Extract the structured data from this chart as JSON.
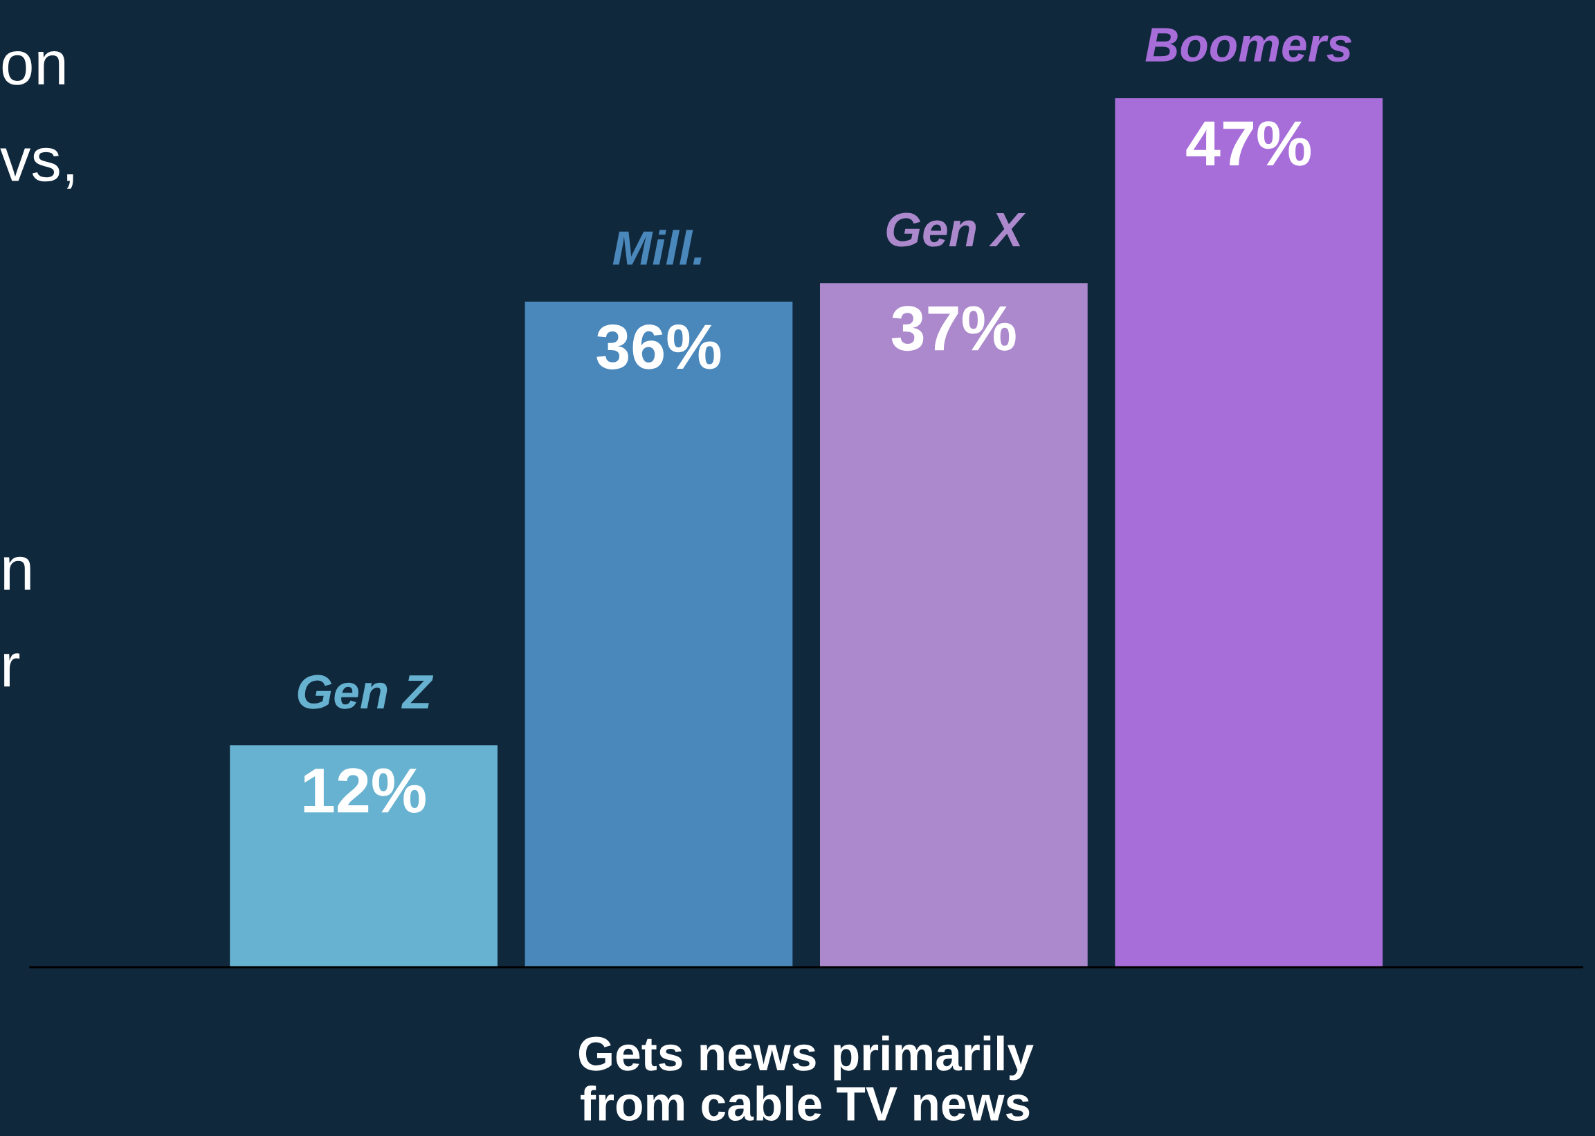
{
  "chart_data": {
    "type": "bar",
    "xlabel": "Gets news primarily\nfrom cable TV news",
    "categories": [
      "Gen Z",
      "Mill.",
      "Gen X",
      "Boomers"
    ],
    "values": [
      12,
      36,
      37,
      47
    ],
    "value_labels": [
      "12%",
      "36%",
      "37%",
      "47%"
    ],
    "colors": [
      "#67b2d0",
      "#4a87bb",
      "#ab89cc",
      "#a76ed9"
    ],
    "annotations": [
      "on",
      "vs,",
      "n",
      "r"
    ]
  }
}
